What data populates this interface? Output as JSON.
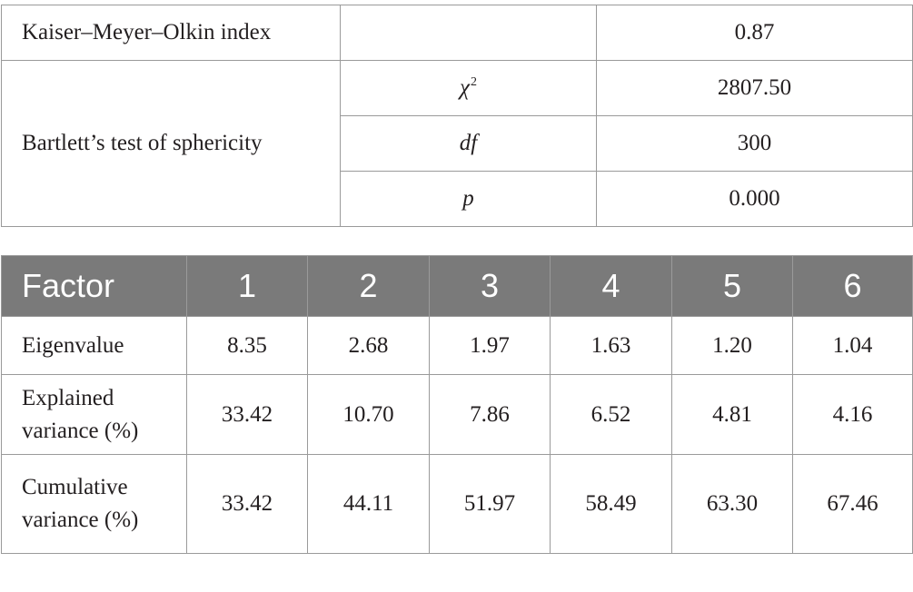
{
  "kmo_table": {
    "kmo": {
      "label": "Kaiser–Meyer–Olkin index",
      "stat": "",
      "value": "0.87"
    },
    "bartlett": {
      "label": "Bartlett’s test of sphericity",
      "rows": [
        {
          "stat": "χ",
          "sup": "2",
          "value": "2807.50"
        },
        {
          "stat": "df",
          "value": "300"
        },
        {
          "stat": "p",
          "value": "0.000"
        }
      ]
    }
  },
  "factor_table": {
    "headers": [
      "Factor",
      "1",
      "2",
      "3",
      "4",
      "5",
      "6"
    ],
    "rows": [
      {
        "label_line1": "Eigenvalue",
        "label_line2": "",
        "values": [
          "8.35",
          "2.68",
          "1.97",
          "1.63",
          "1.20",
          "1.04"
        ]
      },
      {
        "label_line1": "Explained",
        "label_line2": "variance (%)",
        "values": [
          "33.42",
          "10.70",
          "7.86",
          "6.52",
          "4.81",
          "4.16"
        ]
      },
      {
        "label_line1": "Cumulative",
        "label_line2": "variance (%)",
        "values": [
          "33.42",
          "44.11",
          "51.97",
          "58.49",
          "63.30",
          "67.46"
        ]
      }
    ]
  }
}
